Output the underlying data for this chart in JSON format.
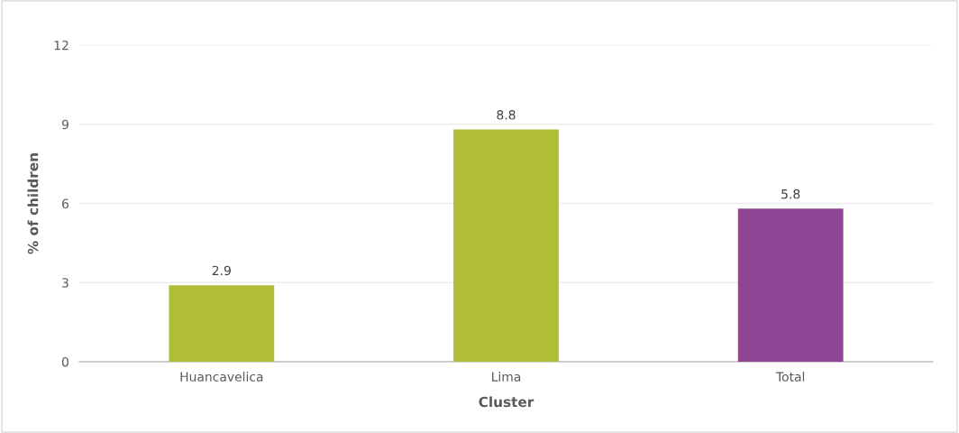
{
  "chart_data": {
    "type": "bar",
    "xlabel": "Cluster",
    "ylabel": "% of children",
    "categories": [
      "Huancavelica",
      "Lima",
      "Total"
    ],
    "values": [
      2.9,
      8.8,
      5.8
    ],
    "colors": [
      "#afbd37",
      "#afbd37",
      "#8f4593"
    ],
    "data_labels": true,
    "ylim": [
      0,
      12
    ],
    "yticks": [
      0,
      3,
      6,
      9,
      12
    ],
    "grid": "y",
    "legend": false
  }
}
